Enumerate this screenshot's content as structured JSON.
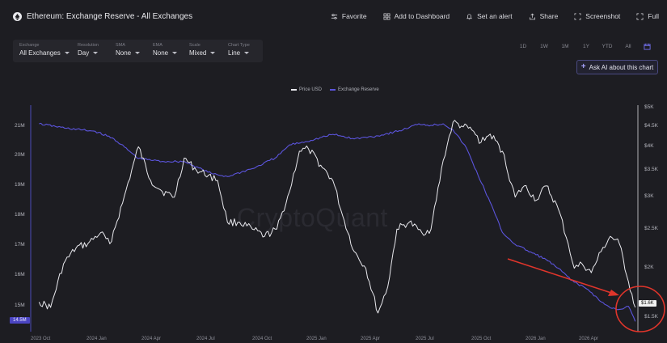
{
  "header": {
    "title": "Ethereum: Exchange Reserve - All Exchanges",
    "actions": {
      "favorite": "Favorite",
      "dashboard": "Add to Dashboard",
      "alert": "Set an alert",
      "share": "Share",
      "screenshot": "Screenshot",
      "full": "Full"
    }
  },
  "controls": {
    "exchange": {
      "label": "Exchange",
      "value": "All Exchanges"
    },
    "resolution": {
      "label": "Resolution",
      "value": "Day"
    },
    "sma": {
      "label": "SMA",
      "value": "None"
    },
    "ema": {
      "label": "EMA",
      "value": "None"
    },
    "scale": {
      "label": "Scale",
      "value": "Mixed"
    },
    "chart_type": {
      "label": "Chart Type",
      "value": "Line"
    }
  },
  "ranges": [
    "1D",
    "1W",
    "1M",
    "1Y",
    "YTD",
    "All"
  ],
  "ask_ai": "Ask AI about this chart",
  "watermark": "CryptoQuant",
  "badges": {
    "left_value": "14.5M",
    "right_value": "$1.6K"
  },
  "colors": {
    "price": "#e9e9ee",
    "reserve": "#5b54dc",
    "annotation": "#e0352b",
    "background": "#1d1d22"
  },
  "chart_data": {
    "type": "line",
    "legend_position": "top-center",
    "grid": false,
    "x_ticks": [
      "2023 Oct",
      "2024 Jan",
      "2024 Apr",
      "2024 Jul",
      "2024 Oct",
      "2025 Jan",
      "2025 Apr",
      "2025 Jul",
      "2025 Oct",
      "2026 Jan",
      "2026 Apr"
    ],
    "y_left_ticks": [
      "21M",
      "20M",
      "19M",
      "18M",
      "17M",
      "16M",
      "15M"
    ],
    "y_left_range": [
      14.5,
      21.4
    ],
    "y_right_ticks": [
      "$5K",
      "$4.5K",
      "$4K",
      "$3.5K",
      "$3K",
      "$2.5K",
      "$2K",
      "$1.5K"
    ],
    "y_right_range": [
      1400,
      5000
    ],
    "y_right_scale": "log",
    "series": [
      {
        "name": "Price USD",
        "axis": "right",
        "x": [
          "2023-10-01",
          "2023-10-20",
          "2023-11-10",
          "2023-12-01",
          "2023-12-20",
          "2024-01-10",
          "2024-01-25",
          "2024-02-15",
          "2024-03-01",
          "2024-03-12",
          "2024-04-01",
          "2024-04-20",
          "2024-05-10",
          "2024-05-26",
          "2024-06-15",
          "2024-07-05",
          "2024-07-20",
          "2024-08-05",
          "2024-08-25",
          "2024-09-15",
          "2024-10-05",
          "2024-10-25",
          "2024-11-15",
          "2024-12-01",
          "2024-12-16",
          "2025-01-05",
          "2025-01-25",
          "2025-02-10",
          "2025-03-01",
          "2025-03-20",
          "2025-04-09",
          "2025-04-25",
          "2025-05-10",
          "2025-05-30",
          "2025-06-20",
          "2025-07-05",
          "2025-07-25",
          "2025-08-10",
          "2025-08-24",
          "2025-09-10",
          "2025-09-25",
          "2025-10-10",
          "2025-10-30",
          "2025-11-20",
          "2025-12-05",
          "2025-12-25",
          "2026-01-10",
          "2026-01-30",
          "2026-02-15",
          "2026-02-25",
          "2026-03-10",
          "2026-03-25",
          "2026-04-10",
          "2026-04-25",
          "2026-05-10",
          "2026-05-25",
          "2026-06-05"
        ],
        "values": [
          1650,
          1600,
          2050,
          2250,
          2300,
          2450,
          2300,
          2900,
          3500,
          4000,
          3300,
          3100,
          3000,
          3750,
          3500,
          3400,
          3300,
          2600,
          2600,
          2500,
          2400,
          2500,
          3100,
          3900,
          3950,
          3600,
          3300,
          2700,
          2200,
          2000,
          1550,
          1800,
          2500,
          2600,
          2450,
          2500,
          3700,
          4600,
          4500,
          4400,
          4100,
          4300,
          3900,
          3000,
          3200,
          2950,
          3200,
          2800,
          2300,
          2000,
          2050,
          1950,
          2200,
          2400,
          2300,
          1850,
          1600
        ]
      },
      {
        "name": "Exchange Reserve",
        "axis": "left",
        "x": [
          "2023-10-01",
          "2023-11-15",
          "2024-01-01",
          "2024-02-01",
          "2024-03-12",
          "2024-04-20",
          "2024-05-26",
          "2024-07-10",
          "2024-08-05",
          "2024-09-20",
          "2024-10-25",
          "2024-11-15",
          "2024-12-20",
          "2025-01-25",
          "2025-03-01",
          "2025-04-09",
          "2025-05-20",
          "2025-06-15",
          "2025-07-05",
          "2025-07-25",
          "2025-08-10",
          "2025-09-01",
          "2025-09-20",
          "2025-10-10",
          "2025-10-30",
          "2025-11-20",
          "2025-12-10",
          "2026-01-10",
          "2026-02-05",
          "2026-02-25",
          "2026-03-20",
          "2026-04-10",
          "2026-04-25",
          "2026-05-10",
          "2026-05-25",
          "2026-06-05"
        ],
        "values": [
          21.1,
          20.95,
          20.85,
          20.6,
          19.95,
          19.85,
          19.85,
          19.45,
          19.35,
          19.65,
          20.0,
          20.4,
          20.55,
          20.75,
          20.6,
          20.7,
          20.9,
          21.1,
          21.05,
          21.1,
          20.9,
          20.3,
          19.4,
          18.5,
          17.5,
          17.1,
          16.9,
          16.6,
          16.2,
          15.85,
          15.6,
          15.2,
          15.0,
          14.95,
          15.05,
          14.55
        ]
      }
    ]
  }
}
